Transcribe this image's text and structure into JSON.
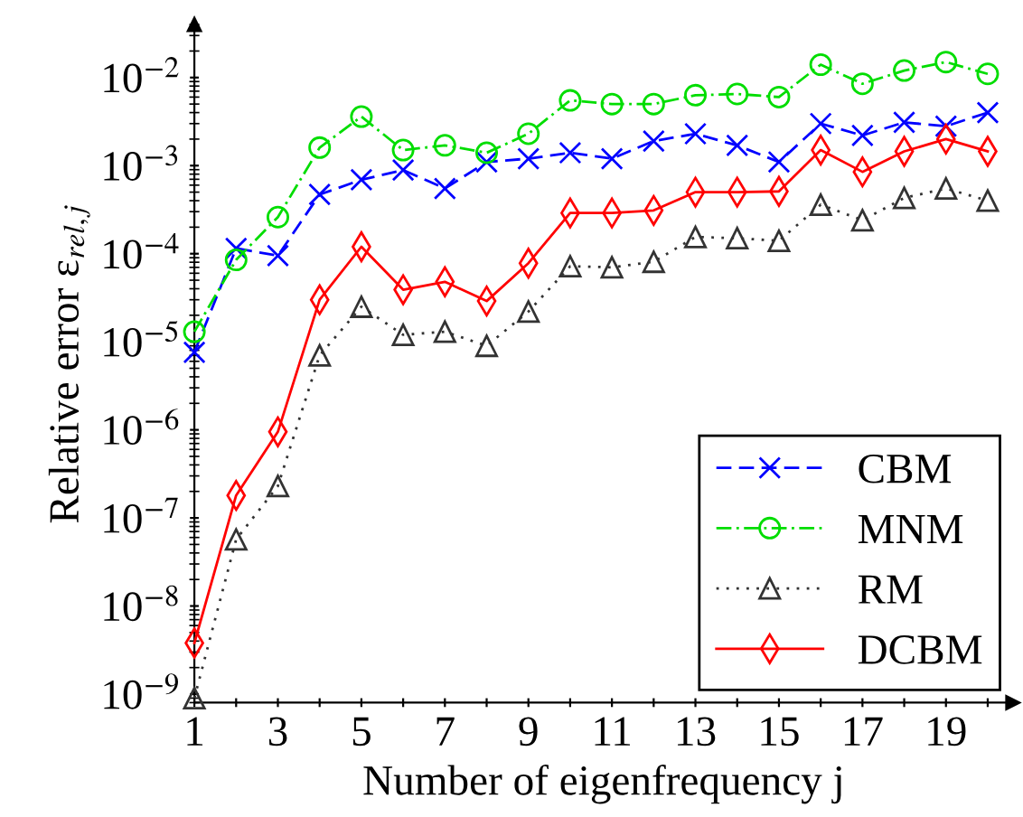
{
  "chart_data": {
    "type": "line",
    "xlabel": "Number of eigenfrequency j",
    "ylabel": "Relative error ε$_{rel,j}$",
    "log": "y",
    "legend": "bottom right",
    "grid": false,
    "x": [
      1,
      2,
      3,
      4,
      5,
      6,
      7,
      8,
      9,
      10,
      11,
      12,
      13,
      14,
      15,
      16,
      17,
      18,
      19,
      20
    ],
    "xlim": [
      1,
      20.6
    ],
    "xticks": [
      1,
      {
        "value": 2,
        "label": null
      },
      3,
      {
        "value": 4,
        "label": null
      },
      5,
      {
        "value": 6,
        "label": null
      },
      7,
      {
        "value": 8,
        "label": null
      },
      9,
      {
        "value": 10,
        "label": null
      },
      11,
      {
        "value": 12,
        "label": null
      },
      13,
      {
        "value": 14,
        "label": null
      },
      15,
      {
        "value": 16,
        "label": null
      },
      17,
      {
        "value": 18,
        "label": null
      },
      19,
      {
        "value": 20,
        "label": null
      }
    ],
    "ylim": [
      8e-10,
      0.04
    ],
    "yticks": [
      {
        "value": 1e-09,
        "label": "10$^{−9}$"
      },
      {
        "value": 1e-08,
        "label": "10$^{−8}$"
      },
      {
        "value": 1e-07,
        "label": "10$^{−7}$"
      },
      {
        "value": 1e-06,
        "label": "10$^{−6}$"
      },
      {
        "value": 1e-05,
        "label": "10$^{−5}$"
      },
      {
        "value": 0.0001,
        "label": "10$^{−4}$"
      },
      {
        "value": 0.001,
        "label": "10$^{−3}$"
      },
      {
        "value": 0.01,
        "label": "10$^{−2}$"
      }
    ],
    "series": [
      {
        "name": "CBM",
        "color": "#0000ff",
        "marker": "cross",
        "line_style": "dashed",
        "values": [
          7.6e-06,
          0.000115,
          9.5e-05,
          0.00047,
          0.00069,
          0.00089,
          0.00055,
          0.0011,
          0.0012,
          0.0014,
          0.0012,
          0.0019,
          0.0023,
          0.0017,
          0.0011,
          0.003,
          0.0022,
          0.0031,
          0.0028,
          0.004
        ]
      },
      {
        "name": "MNM",
        "color": "#00dd00",
        "marker": "circle",
        "line_style": "dashdot",
        "values": [
          1.3e-05,
          8.5e-05,
          0.00026,
          0.0016,
          0.0036,
          0.0015,
          0.0017,
          0.0014,
          0.0023,
          0.0055,
          0.005,
          0.005,
          0.0063,
          0.0065,
          0.006,
          0.014,
          0.0085,
          0.012,
          0.015,
          0.011
        ]
      },
      {
        "name": "RM",
        "color": "#333333",
        "marker": "triangle",
        "line_style": "dotted",
        "values": [
          9e-10,
          5.7e-08,
          2.3e-07,
          7e-06,
          2.5e-05,
          1.2e-05,
          1.3e-05,
          9e-06,
          2.2e-05,
          7.2e-05,
          7e-05,
          8.1e-05,
          0.000155,
          0.00015,
          0.00014,
          0.00036,
          0.00024,
          0.00043,
          0.00055,
          0.0004
        ]
      },
      {
        "name": "DCBM",
        "color": "#ff0000",
        "marker": "diamond",
        "line_style": "solid",
        "values": [
          3.8e-09,
          1.8e-07,
          9.5e-07,
          3e-05,
          0.00012,
          3.9e-05,
          4.8e-05,
          2.9e-05,
          7.8e-05,
          0.00029,
          0.00029,
          0.00031,
          0.0005,
          0.0005,
          0.00051,
          0.0015,
          0.00085,
          0.00145,
          0.002,
          0.00145
        ]
      }
    ]
  }
}
